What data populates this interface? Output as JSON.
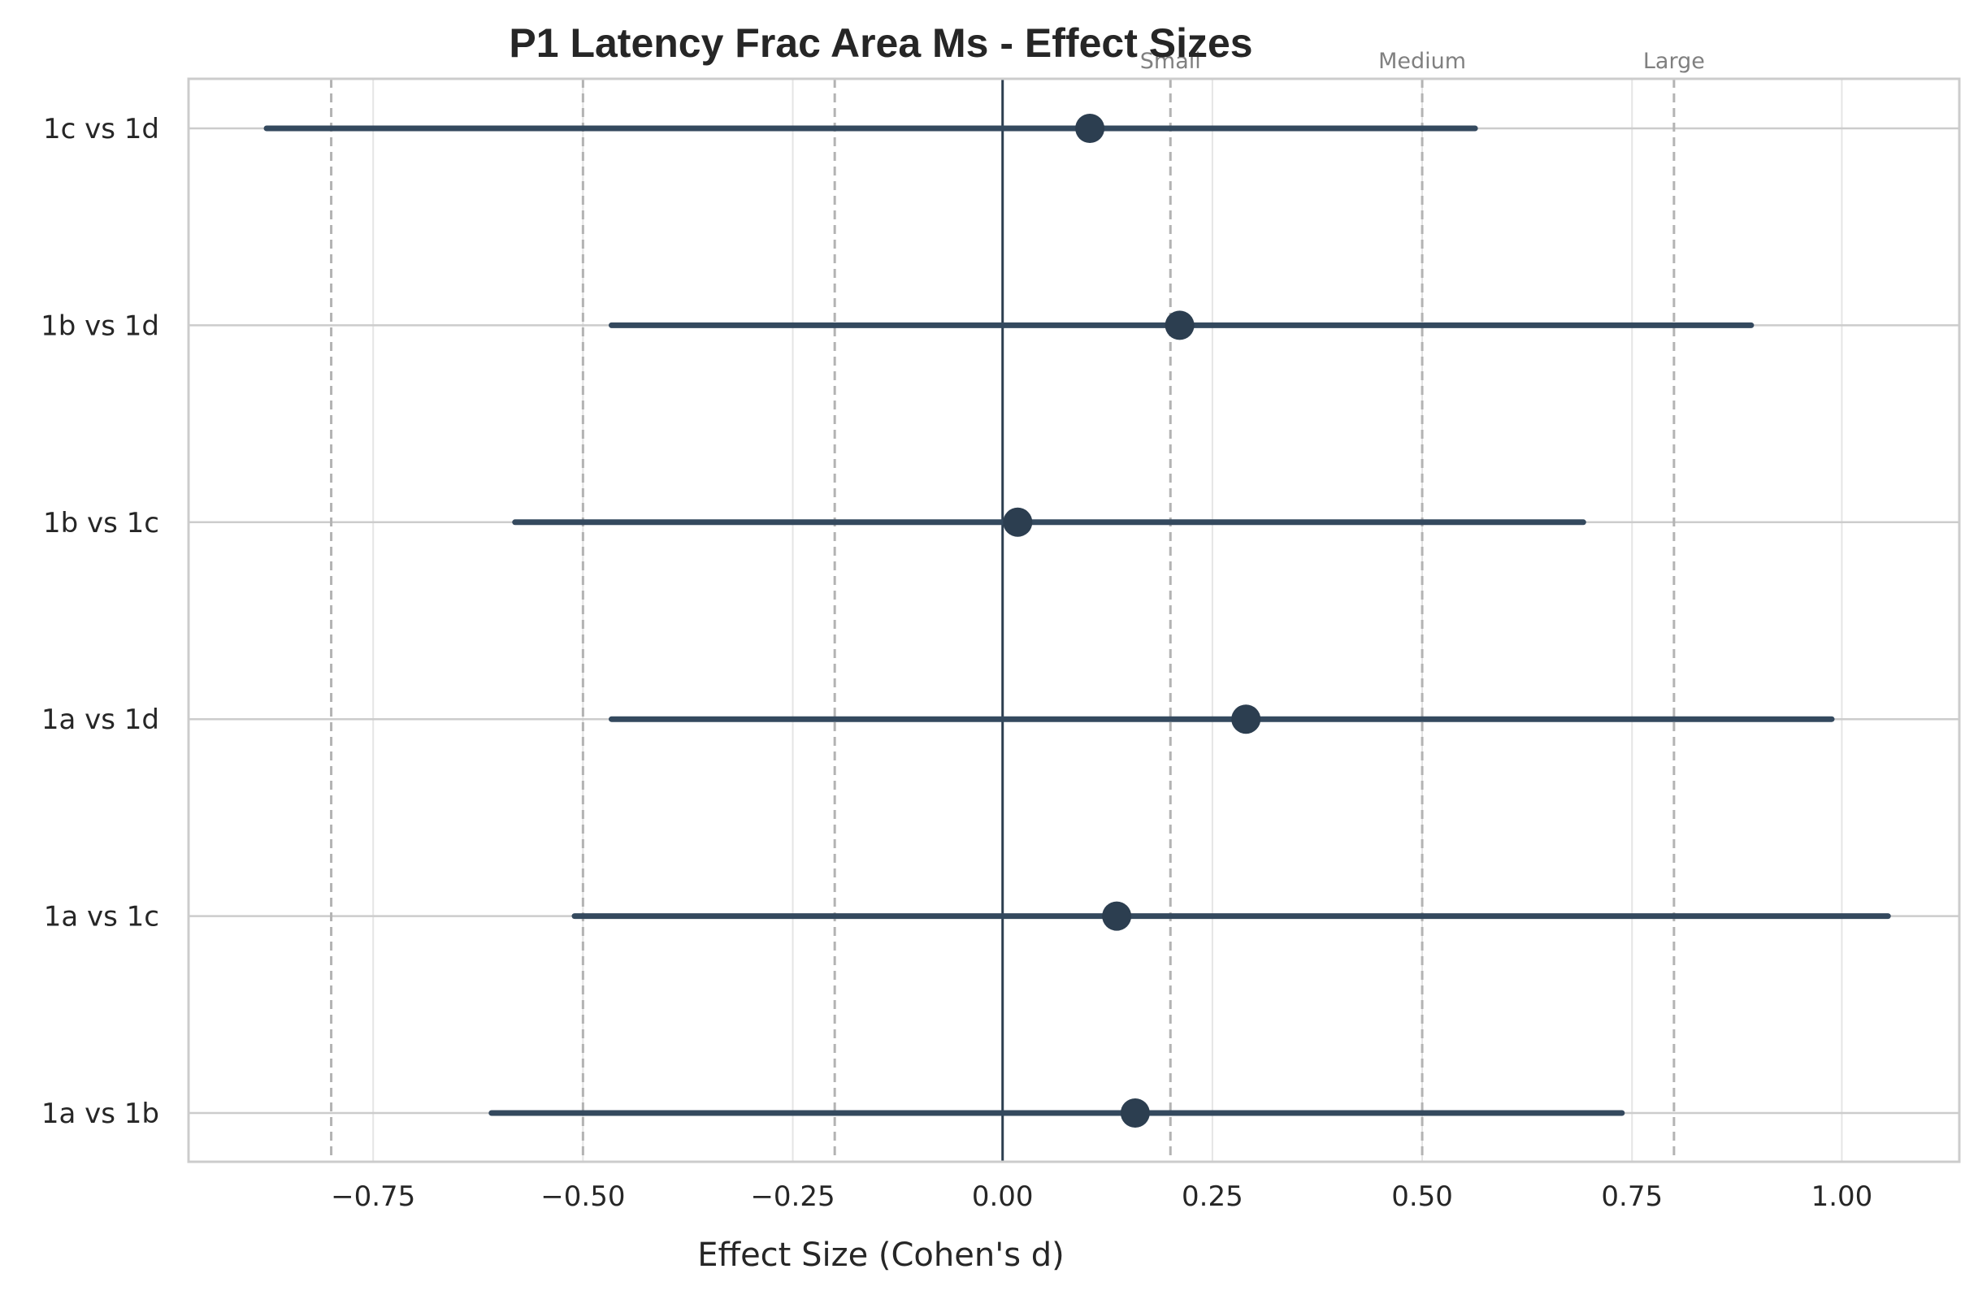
{
  "chart_data": {
    "type": "forest",
    "title": "P1 Latency Frac Area Ms - Effect Sizes",
    "xlabel": "Effect Size (Cohen's d)",
    "ylabel": "",
    "xlim": [
      -0.97,
      1.14
    ],
    "xticks": [
      -0.75,
      -0.5,
      -0.25,
      0.0,
      0.25,
      0.5,
      0.75,
      1.0
    ],
    "xtick_labels": [
      "−0.75",
      "−0.50",
      "−0.25",
      "0.00",
      "0.25",
      "0.50",
      "0.75",
      "1.00"
    ],
    "grid": true,
    "comparisons": [
      {
        "label": "1c vs 1d",
        "d": 0.104,
        "ci_low": -0.877,
        "ci_high": 0.563
      },
      {
        "label": "1b vs 1d",
        "d": 0.211,
        "ci_low": -0.466,
        "ci_high": 0.892
      },
      {
        "label": "1b vs 1c",
        "d": 0.018,
        "ci_low": -0.581,
        "ci_high": 0.692
      },
      {
        "label": "1a vs 1d",
        "d": 0.29,
        "ci_low": -0.466,
        "ci_high": 0.988
      },
      {
        "label": "1a vs 1c",
        "d": 0.136,
        "ci_low": -0.51,
        "ci_high": 1.055
      },
      {
        "label": "1a vs 1b",
        "d": 0.158,
        "ci_low": -0.609,
        "ci_high": 0.738
      }
    ],
    "reference_lines": [
      {
        "value": 0.2,
        "label": "Small"
      },
      {
        "value": 0.5,
        "label": "Medium"
      },
      {
        "value": 0.8,
        "label": "Large"
      },
      {
        "value": -0.2,
        "label": ""
      },
      {
        "value": -0.5,
        "label": ""
      },
      {
        "value": -0.8,
        "label": ""
      }
    ],
    "zero_line": 0.0,
    "colors": {
      "marker": "#2c3e50",
      "ci_line": "#34495e",
      "zero_line": "#2c3e50",
      "reference_line": "#b3b3b3",
      "grid": "#e5e5e5",
      "row_grid": "#cccccc",
      "spine": "#cccccc"
    }
  }
}
